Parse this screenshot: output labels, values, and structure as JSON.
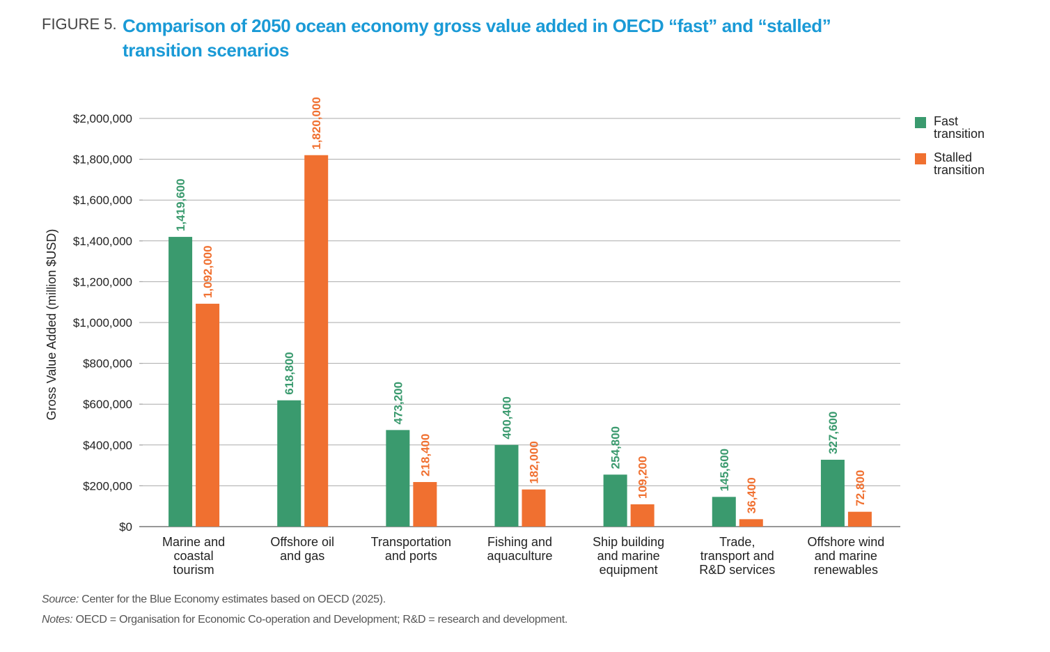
{
  "figure_label": "FIGURE 5.",
  "chart_data": {
    "type": "bar",
    "title": "Comparison of 2050 ocean economy gross value added in OECD “fast” and “stalled” transition scenarios",
    "y_label": "Gross Value Added (million $USD)",
    "categories": [
      "Marine and\ncoastal\ntourism",
      "Offshore oil\nand gas",
      "Transportation\nand ports",
      "Fishing and\naquaculture",
      "Ship building\nand marine\nequipment",
      "Trade,\ntransport and\nR&D services",
      "Offshore wind\nand marine\nrenewables"
    ],
    "series": [
      {
        "name": "Fast transition",
        "color": "#3a9a6e",
        "values": [
          1419600,
          618800,
          473200,
          400400,
          254800,
          145600,
          327600
        ],
        "value_labels": [
          "1,419,600",
          "618,800",
          "473,200",
          "400,400",
          "254,800",
          "145,600",
          "327,600"
        ]
      },
      {
        "name": "Stalled transition",
        "color": "#f07030",
        "values": [
          1092000,
          1820000,
          218400,
          182000,
          109200,
          36400,
          72800
        ],
        "value_labels": [
          "1,092,000",
          "1,820,000",
          "218,400",
          "182,000",
          "109,200",
          "36,400",
          "72,800"
        ]
      }
    ],
    "ylim": [
      0,
      2000000
    ],
    "yticks": [
      {
        "value": 0,
        "label": "$0"
      },
      {
        "value": 200000,
        "label": "$200,000"
      },
      {
        "value": 400000,
        "label": "$400,000"
      },
      {
        "value": 600000,
        "label": "$600,000"
      },
      {
        "value": 800000,
        "label": "$800,000"
      },
      {
        "value": 1000000,
        "label": "$1,000,000"
      },
      {
        "value": 1200000,
        "label": "$1,200,000"
      },
      {
        "value": 1400000,
        "label": "$1,400,000"
      },
      {
        "value": 1600000,
        "label": "$1,600,000"
      },
      {
        "value": 1800000,
        "label": "$1,800,000"
      },
      {
        "value": 2000000,
        "label": "$2,000,000"
      }
    ],
    "grid": true,
    "legend": "right"
  },
  "source_label": "Source:",
  "source": "Center for the Blue Economy estimates based on OECD (2025).",
  "notes_label": "Notes:",
  "notes": "OECD = Organisation for Economic Co-operation and Development; R&D = research and development."
}
